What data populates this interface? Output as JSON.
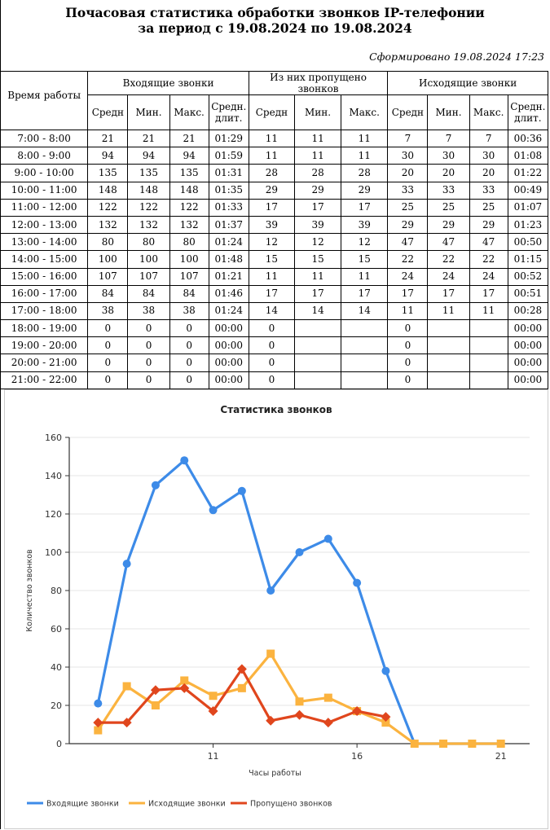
{
  "report": {
    "title_line1": "Почасовая статистика обработки звонков IP-телефонии",
    "title_line2": "за период с 19.08.2024 по 19.08.2024",
    "generated": "Сформировано 19.08.2024 17:23"
  },
  "table": {
    "time_header": "Время работы",
    "groups": [
      "Входящие звонки",
      "Из них пропущено звонков",
      "Исходящие звонки"
    ],
    "subheaders": [
      "Средн",
      "Мин.",
      "Макс.",
      "Средн. длит.",
      "Средн",
      "Мин.",
      "Макс.",
      "Средн",
      "Мин.",
      "Макс.",
      "Средн. длит."
    ],
    "rows": [
      [
        "7:00 - 8:00",
        "21",
        "21",
        "21",
        "01:29",
        "11",
        "11",
        "11",
        "7",
        "7",
        "7",
        "00:36"
      ],
      [
        "8:00 - 9:00",
        "94",
        "94",
        "94",
        "01:59",
        "11",
        "11",
        "11",
        "30",
        "30",
        "30",
        "01:08"
      ],
      [
        "9:00 - 10:00",
        "135",
        "135",
        "135",
        "01:31",
        "28",
        "28",
        "28",
        "20",
        "20",
        "20",
        "01:22"
      ],
      [
        "10:00 - 11:00",
        "148",
        "148",
        "148",
        "01:35",
        "29",
        "29",
        "29",
        "33",
        "33",
        "33",
        "00:49"
      ],
      [
        "11:00 - 12:00",
        "122",
        "122",
        "122",
        "01:33",
        "17",
        "17",
        "17",
        "25",
        "25",
        "25",
        "01:07"
      ],
      [
        "12:00 - 13:00",
        "132",
        "132",
        "132",
        "01:37",
        "39",
        "39",
        "39",
        "29",
        "29",
        "29",
        "01:23"
      ],
      [
        "13:00 - 14:00",
        "80",
        "80",
        "80",
        "01:24",
        "12",
        "12",
        "12",
        "47",
        "47",
        "47",
        "00:50"
      ],
      [
        "14:00 - 15:00",
        "100",
        "100",
        "100",
        "01:48",
        "15",
        "15",
        "15",
        "22",
        "22",
        "22",
        "01:15"
      ],
      [
        "15:00 - 16:00",
        "107",
        "107",
        "107",
        "01:21",
        "11",
        "11",
        "11",
        "24",
        "24",
        "24",
        "00:52"
      ],
      [
        "16:00 - 17:00",
        "84",
        "84",
        "84",
        "01:46",
        "17",
        "17",
        "17",
        "17",
        "17",
        "17",
        "00:51"
      ],
      [
        "17:00 - 18:00",
        "38",
        "38",
        "38",
        "01:24",
        "14",
        "14",
        "14",
        "11",
        "11",
        "11",
        "00:28"
      ],
      [
        "18:00 - 19:00",
        "0",
        "0",
        "0",
        "00:00",
        "0",
        "",
        "",
        "0",
        "",
        "",
        "00:00"
      ],
      [
        "19:00 - 20:00",
        "0",
        "0",
        "0",
        "00:00",
        "0",
        "",
        "",
        "0",
        "",
        "",
        "00:00"
      ],
      [
        "20:00 - 21:00",
        "0",
        "0",
        "0",
        "00:00",
        "0",
        "",
        "",
        "0",
        "",
        "",
        "00:00"
      ],
      [
        "21:00 - 22:00",
        "0",
        "0",
        "0",
        "00:00",
        "0",
        "",
        "",
        "0",
        "",
        "",
        "00:00"
      ]
    ]
  },
  "chart_data": {
    "type": "line",
    "title": "Статистика звонков",
    "xlabel": "Часы работы",
    "ylabel": "Количество звонков",
    "x": [
      7,
      8,
      9,
      10,
      11,
      12,
      13,
      14,
      15,
      16,
      17,
      18,
      19,
      20,
      21
    ],
    "xticks": [
      11,
      16,
      21
    ],
    "ylim": [
      0,
      160
    ],
    "yticks": [
      0,
      20,
      40,
      60,
      80,
      100,
      120,
      140,
      160
    ],
    "grid": true,
    "legend": "bottom",
    "series": [
      {
        "name": "Входящие звонки",
        "color": "#3d8be8",
        "marker": "circle",
        "x": [
          7,
          8,
          9,
          10,
          11,
          12,
          13,
          14,
          15,
          16,
          17,
          18,
          19,
          20,
          21
        ],
        "values": [
          21,
          94,
          135,
          148,
          122,
          132,
          80,
          100,
          107,
          84,
          38,
          0,
          0,
          0,
          0
        ]
      },
      {
        "name": "Исходящие звонки",
        "color": "#fbb33f",
        "marker": "square",
        "x": [
          7,
          8,
          9,
          10,
          11,
          12,
          13,
          14,
          15,
          16,
          17,
          18,
          19,
          20,
          21
        ],
        "values": [
          7,
          30,
          20,
          33,
          25,
          29,
          47,
          22,
          24,
          17,
          11,
          0,
          0,
          0,
          0
        ]
      },
      {
        "name": "Пропущено звонков",
        "color": "#e0461d",
        "marker": "diamond",
        "x": [
          7,
          8,
          9,
          10,
          11,
          12,
          13,
          14,
          15,
          16,
          17
        ],
        "values": [
          11,
          11,
          28,
          29,
          17,
          39,
          12,
          15,
          11,
          17,
          14
        ]
      }
    ]
  }
}
